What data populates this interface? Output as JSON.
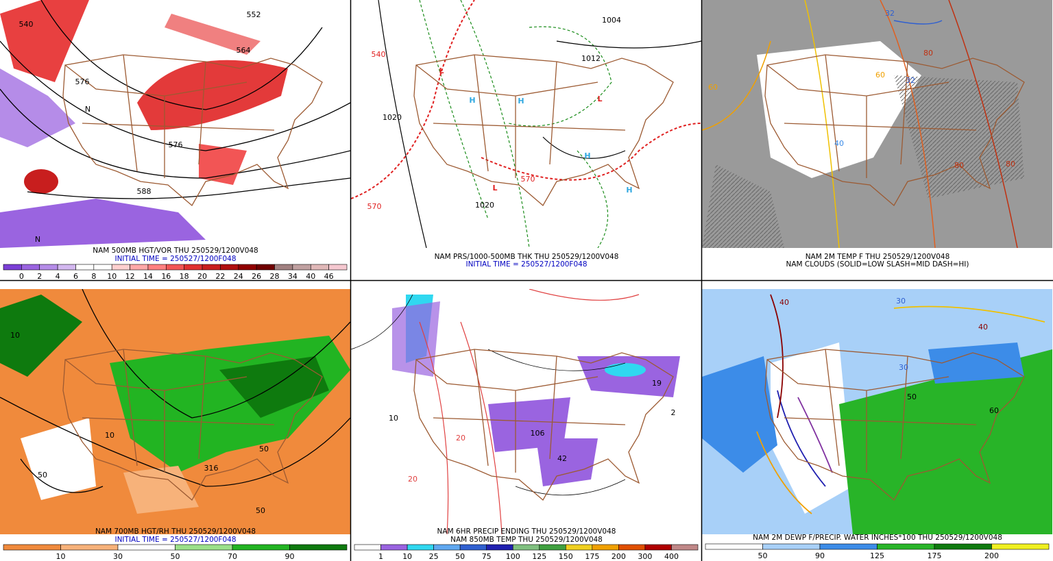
{
  "panels": [
    {
      "captions": [
        "NAM 500MB HGT/VOR THU 250529/1200V048",
        "INITIAL TIME = 250527/1200F048"
      ],
      "colorbar": {
        "colors": [
          "#7b3fd6",
          "#9a64e0",
          "#b58ce8",
          "#d3b8f0",
          "#ffffff",
          "#ffffff",
          "#ffd0d0",
          "#ffa8a8",
          "#ff7f7f",
          "#f25555",
          "#e03030",
          "#c81e1e",
          "#b01010",
          "#900000",
          "#700000",
          "#a08080",
          "#c0a0a0",
          "#e0b8b8",
          "#f5c8d0"
        ],
        "labels": [
          "0",
          "2",
          "4",
          "6",
          "8",
          "10",
          "12",
          "14",
          "16",
          "18",
          "20",
          "22",
          "24",
          "26",
          "28",
          "34",
          "40",
          "46"
        ]
      },
      "map_labels": [
        "540",
        "552",
        "564",
        "576",
        "576",
        "588",
        "N",
        "N"
      ]
    },
    {
      "captions": [
        "NAM PRS/1000-500MB THK THU 250529/1200V048",
        "INITIAL TIME = 250527/1200F048"
      ],
      "map_labels": [
        "1004",
        "1012",
        "1020",
        "1020",
        "540",
        "570",
        "570",
        "L",
        "L",
        "L",
        "H",
        "H",
        "H",
        "H"
      ]
    },
    {
      "captions": [
        "NAM 2M TEMP F THU 250529/1200V048",
        "NAM CLOUDS (SOLID=LOW SLASH=MID DASH=HI)"
      ],
      "map_labels": [
        "80",
        "80",
        "80",
        "60",
        "60",
        "40",
        "32",
        "32"
      ]
    },
    {
      "captions": [
        "NAM 700MB HGT/RH THU 250529/1200V048",
        "INITIAL TIME = 250527/1200F048"
      ],
      "colorbar": {
        "colors": [
          "#f08a3c",
          "#f7b27a",
          "#ffffff",
          "#9be08a",
          "#22b422",
          "#0e7a0e"
        ],
        "labels": [
          "10",
          "30",
          "50",
          "70",
          "90"
        ]
      },
      "map_labels": [
        "10",
        "10",
        "50",
        "50",
        "50",
        "316"
      ]
    },
    {
      "captions": [
        "NAM 6HR PRECIP ENDING THU 250529/1200V048",
        "NAM 850MB TEMP THU 250529/1200V048"
      ],
      "colorbar": {
        "colors": [
          "#ffffff",
          "#9a64e0",
          "#30d8f0",
          "#60a8f0",
          "#3060d0",
          "#2020b0",
          "#80c080",
          "#40a040",
          "#f0d020",
          "#f0a000",
          "#e05000",
          "#b00000",
          "#c08888"
        ],
        "labels": [
          "1",
          "10",
          "25",
          "50",
          "75",
          "100",
          "125",
          "150",
          "175",
          "200",
          "300",
          "400"
        ]
      },
      "map_labels": [
        "20",
        "20",
        "10",
        "106",
        "42",
        "19",
        "2"
      ]
    },
    {
      "captions": [
        "NAM 2M DEWP F/PRECIP. WATER INCHES*100 THU 250529/1200V048"
      ],
      "colorbar": {
        "colors": [
          "#ffffff",
          "#a8d0f8",
          "#3c8ce8",
          "#28b428",
          "#0e7a0e",
          "#f0f020"
        ],
        "labels": [
          "50",
          "90",
          "125",
          "175",
          "200"
        ]
      },
      "map_labels": [
        "40",
        "40",
        "30",
        "30",
        "50",
        "60"
      ]
    }
  ]
}
